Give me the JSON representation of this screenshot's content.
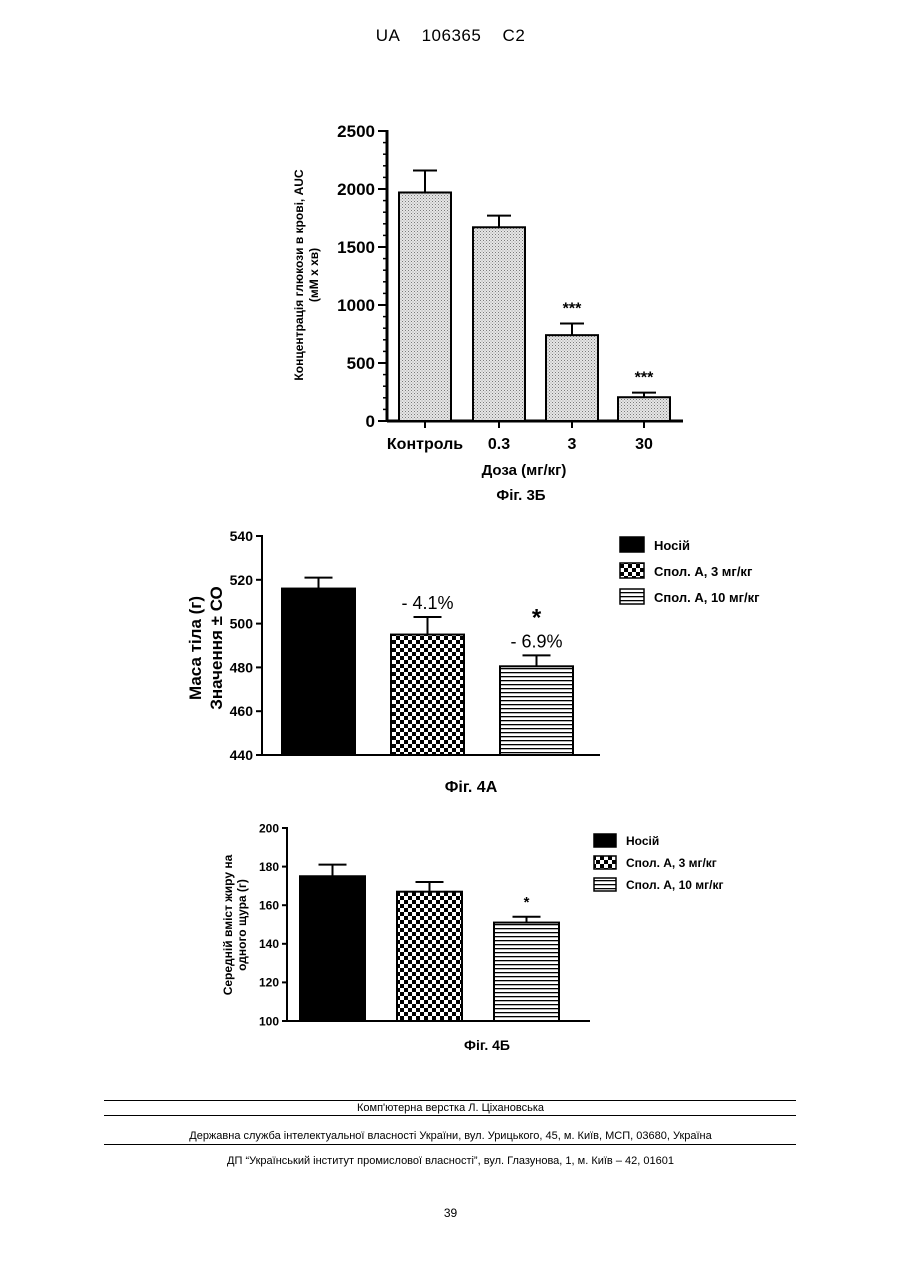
{
  "header": {
    "country": "UA",
    "number": "106365",
    "kind": "C2"
  },
  "figures": [
    {
      "caption": "Фіг. 3Б",
      "chart_data": {
        "type": "bar",
        "categories": [
          "Контроль",
          "0.3",
          "3",
          "30"
        ],
        "values": [
          1970,
          1670,
          740,
          205
        ],
        "errors": [
          190,
          100,
          100,
          40
        ],
        "annotations": [
          "",
          "",
          "***",
          "***"
        ],
        "ylabel_lines": [
          "Концентрація глюкози в крові, AUC",
          "(мМ х хв)"
        ],
        "xlabel": "Доза (мг/кг)",
        "ylim": [
          0,
          2500
        ],
        "yticks": [
          0,
          500,
          1000,
          1500,
          2000,
          2500
        ],
        "ytick_labels": [
          "0",
          "500",
          "1000",
          "1500",
          "2000",
          "2500"
        ],
        "bar_fill": "dotted-light-gray",
        "grid": false
      }
    },
    {
      "caption": "Фіг. 4А",
      "chart_data": {
        "type": "bar",
        "categories": [
          "Носій",
          "Спол. А, 3 мг/кг",
          "Спол. А, 10 мг/кг"
        ],
        "values": [
          516,
          495,
          480.5
        ],
        "errors": [
          5,
          8,
          5
        ],
        "annotations": [
          {
            "star": "",
            "percent": ""
          },
          {
            "star": "",
            "percent": "- 4.1%"
          },
          {
            "star": "*",
            "percent": "- 6.9%"
          }
        ],
        "ylabel_lines": [
          "Маса тіла (г)",
          "Значення ± СО"
        ],
        "ylim": [
          440,
          540
        ],
        "yticks": [
          440,
          460,
          480,
          500,
          520,
          540
        ],
        "ytick_labels": [
          "440",
          "460",
          "480",
          "500",
          "520",
          "540"
        ],
        "legend": [
          "Носій",
          "Спол. А, 3 мг/кг",
          "Спол. А, 10 мг/кг"
        ],
        "legend_position": "top-right",
        "fills": [
          "solid-black",
          "checkerboard",
          "horizontal-stripes"
        ],
        "grid": false
      }
    },
    {
      "caption": "Фіг. 4Б",
      "chart_data": {
        "type": "bar",
        "categories": [
          "Носій",
          "Спол. А, 3 мг/кг",
          "Спол. А, 10 мг/кг"
        ],
        "values": [
          175,
          167,
          151
        ],
        "errors": [
          6,
          5,
          3
        ],
        "annotations": [
          "",
          "",
          "*"
        ],
        "ylabel_lines": [
          "Середній вміст жиру на",
          "одного щура (г)"
        ],
        "ylim": [
          100,
          200
        ],
        "yticks": [
          100,
          120,
          140,
          160,
          180,
          200
        ],
        "ytick_labels": [
          "100",
          "120",
          "140",
          "160",
          "180",
          "200"
        ],
        "legend": [
          "Носій",
          "Спол. А, 3 мг/кг",
          "Спол. А, 10 мг/кг"
        ],
        "legend_position": "top-right",
        "fills": [
          "solid-black",
          "checkerboard",
          "horizontal-stripes"
        ],
        "grid": false
      }
    }
  ],
  "footer": {
    "typesetter": "Комп'ютерна верстка Л. Ціхановська",
    "agency": "Державна служба інтелектуальної власності України, вул. Урицького, 45, м. Київ, МСП, 03680, Україна",
    "institute": "ДП “Український інститут промислової власності”, вул. Глазунова, 1, м. Київ – 42, 01601"
  },
  "page_number": "39"
}
